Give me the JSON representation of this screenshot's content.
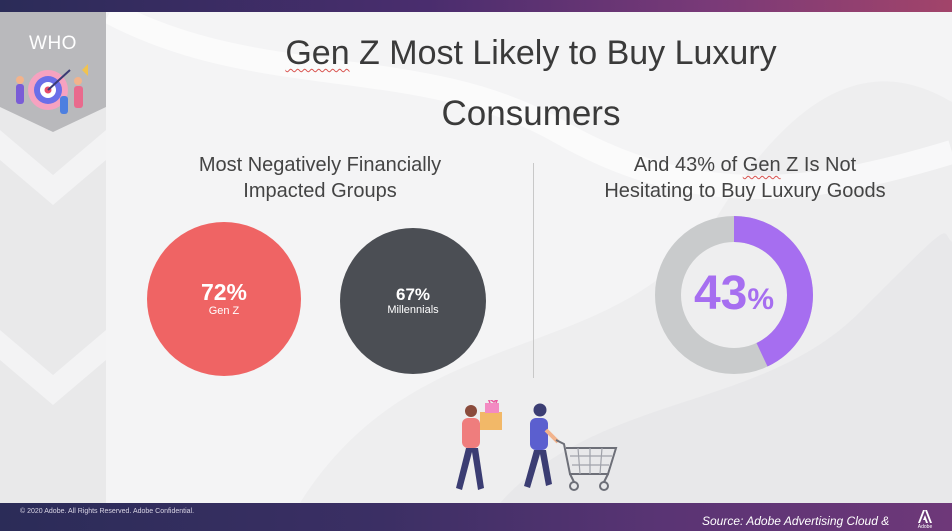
{
  "sidebar": {
    "label": "WHO"
  },
  "title": {
    "line1_part_a": "Gen",
    "line1_part_b": " Z Most Likely to Buy Luxury",
    "line2": "Consumers"
  },
  "left_panel": {
    "heading_line1": "Most Negatively Financially",
    "heading_line2": "Impacted Groups",
    "groups": [
      {
        "value": "72%",
        "label": "Gen Z",
        "color": "#ef6464"
      },
      {
        "value": "67%",
        "label": "Millennials",
        "color": "#4b4e54"
      }
    ]
  },
  "right_panel": {
    "heading_line1_a": "And 43% of ",
    "heading_line1_b": "Gen",
    "heading_line1_c": " Z Is Not",
    "heading_line2": "Hesitating to Buy Luxury Goods",
    "donut": {
      "number": "43",
      "symbol": "%",
      "fraction": 0.43,
      "fill_color": "#a66ef0",
      "track_color": "#c9cbcc"
    }
  },
  "footer": {
    "copyright": "© 2020 Adobe.  All Rights Reserved.  Adobe Confidential.",
    "source": "Source: Adobe Advertising Cloud &",
    "logo_text": "Adobe"
  }
}
